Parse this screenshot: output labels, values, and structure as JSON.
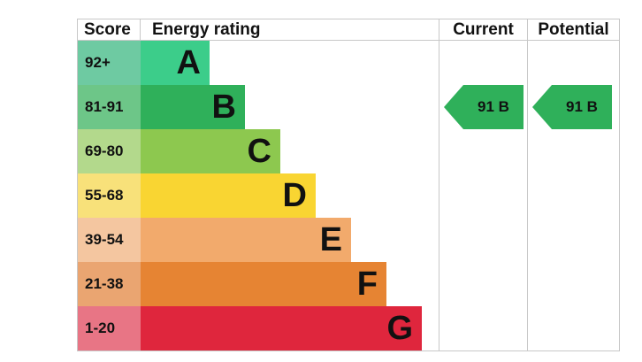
{
  "headers": {
    "score": "Score",
    "energy_rating": "Energy rating",
    "current": "Current",
    "potential": "Potential"
  },
  "bands": [
    {
      "score": "92+",
      "letter": "A",
      "color": "#3ccd8a",
      "score_color": "#6ecaa2"
    },
    {
      "score": "81-91",
      "letter": "B",
      "color": "#2fb05a",
      "score_color": "#6dc688"
    },
    {
      "score": "69-80",
      "letter": "C",
      "color": "#8dc84f",
      "score_color": "#b3d98c"
    },
    {
      "score": "55-68",
      "letter": "D",
      "color": "#f9d532",
      "score_color": "#f8e17a"
    },
    {
      "score": "39-54",
      "letter": "E",
      "color": "#f2aa6c",
      "score_color": "#f4c6a0"
    },
    {
      "score": "21-38",
      "letter": "F",
      "color": "#e68433",
      "score_color": "#eaa571"
    },
    {
      "score": "1-20",
      "letter": "G",
      "color": "#df263d",
      "score_color": "#e87585"
    }
  ],
  "current": {
    "label": "91 B",
    "color": "#2fb05a"
  },
  "potential": {
    "label": "91 B",
    "color": "#2fb05a"
  }
}
